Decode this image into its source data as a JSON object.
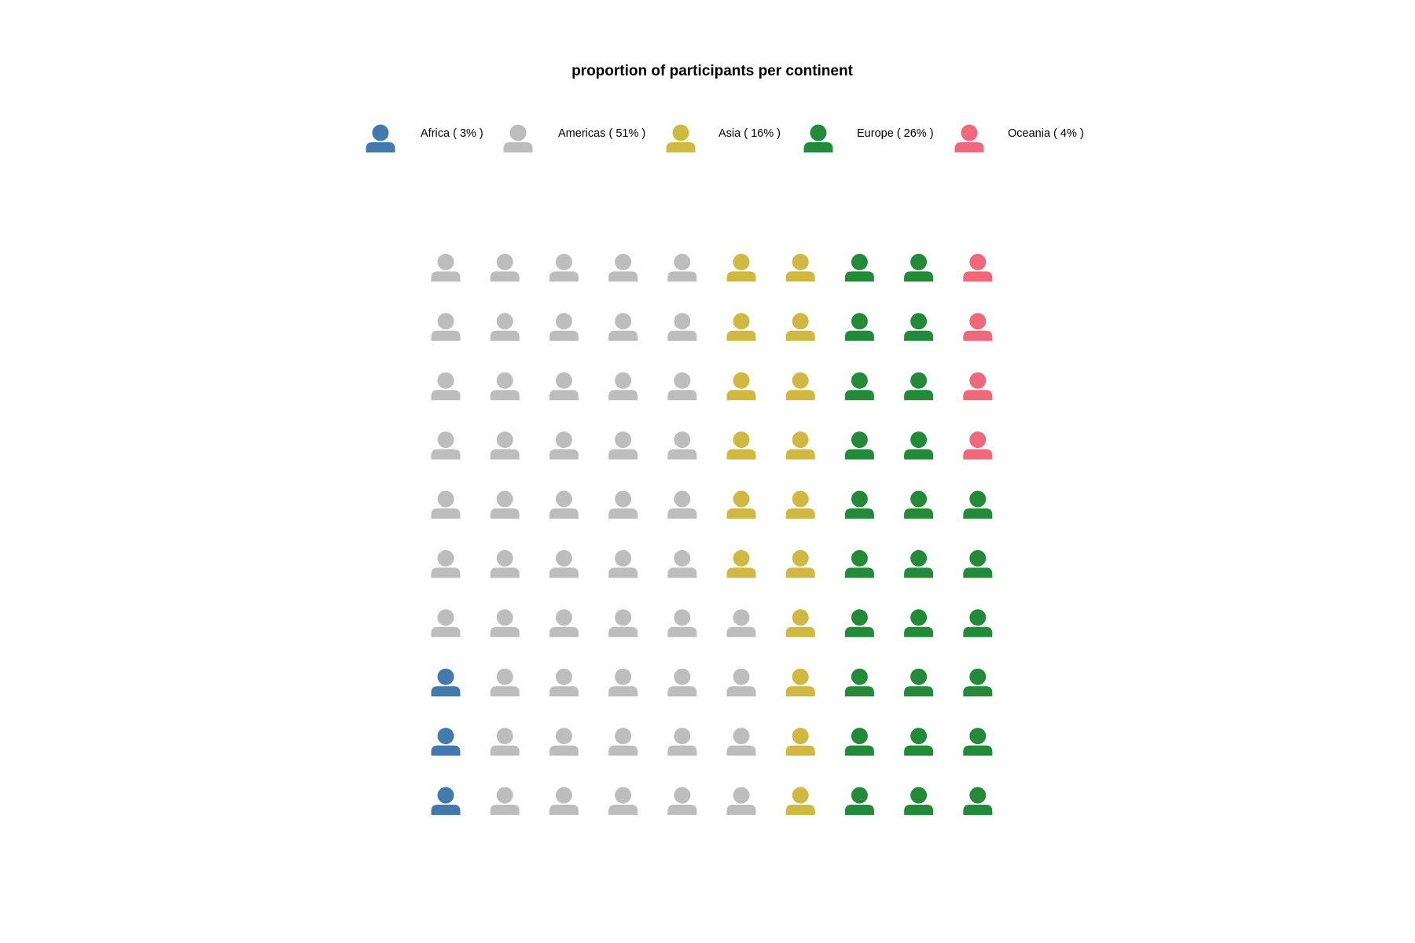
{
  "chart_data": {
    "type": "pictogram",
    "title": "proportion of participants per continent",
    "icon": "person-icon",
    "total_icons": 100,
    "rows": 10,
    "columns": 10,
    "fill_order": "column-major, bottom-to-top, left-to-right",
    "legend_position": "top",
    "series": [
      {
        "name": "Africa",
        "label": "Africa ( 3% )",
        "value": 3,
        "color": "#4479AD"
      },
      {
        "name": "Americas",
        "label": "Americas ( 51% )",
        "value": 51,
        "color": "#BDBDBD"
      },
      {
        "name": "Asia",
        "label": "Asia ( 16% )",
        "value": 16,
        "color": "#CFB943"
      },
      {
        "name": "Europe",
        "label": "Europe ( 26% )",
        "value": 26,
        "color": "#238A3A"
      },
      {
        "name": "Oceania",
        "label": "Oceania ( 4% )",
        "value": 4,
        "color": "#F0697A"
      }
    ]
  }
}
